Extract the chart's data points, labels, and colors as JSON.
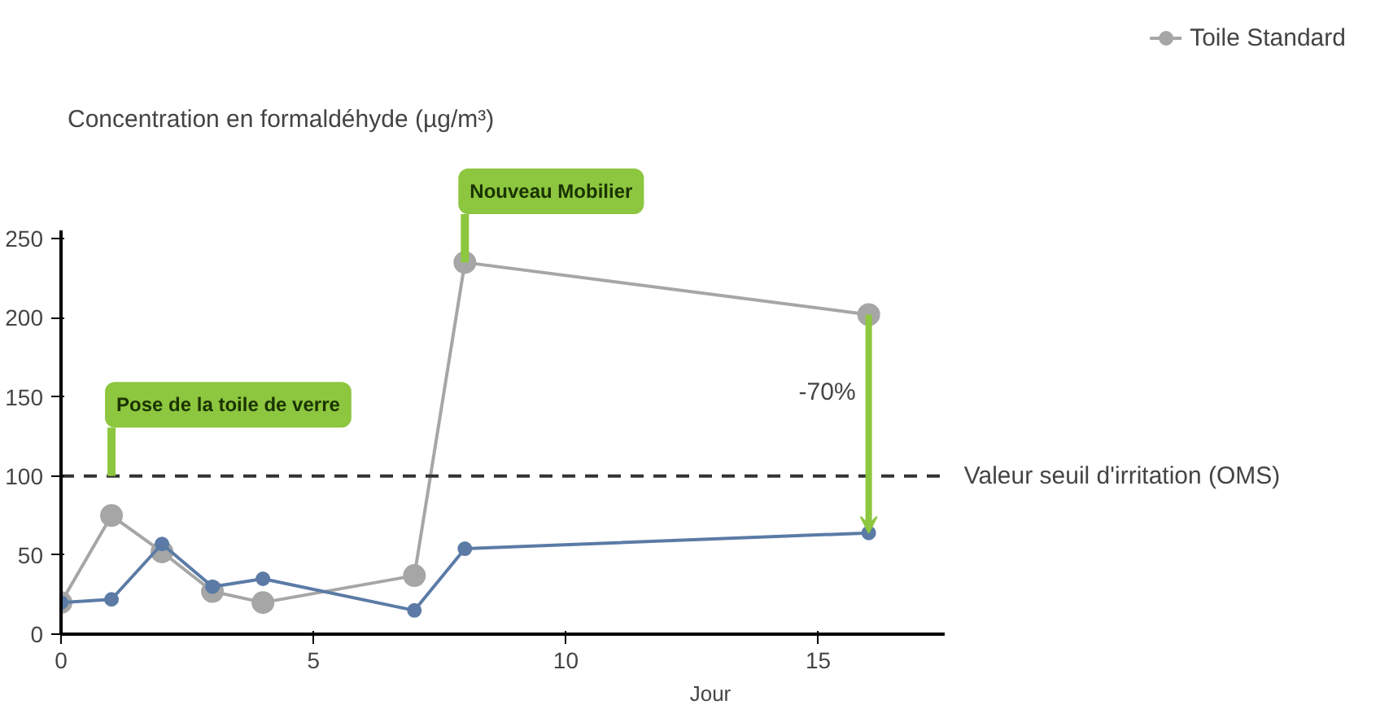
{
  "chart_data": {
    "type": "line",
    "ylabel": "Concentration en formaldéhyde (µg/m³)",
    "xlabel": "Jour",
    "x": [
      0,
      1,
      2,
      3,
      4,
      7,
      8,
      16
    ],
    "series": [
      {
        "name": "Toile Standard",
        "color": "#a6a6a6",
        "values": [
          20,
          75,
          52,
          27,
          20,
          37,
          235,
          202
        ]
      },
      {
        "color": "#5b7ba6",
        "values": [
          20,
          22,
          57,
          30,
          35,
          15,
          54,
          64
        ]
      }
    ],
    "xlim": [
      0,
      17.5
    ],
    "xticks": [
      0,
      5,
      10,
      15
    ],
    "ylim": [
      0,
      255
    ],
    "yticks": [
      0,
      50,
      100,
      150,
      200,
      250
    ],
    "ref_lines": [
      {
        "axis": "y",
        "value": 100,
        "label": "Valeur seuil d'irritation (OMS)",
        "color": "#333333",
        "line_style": "dashed"
      }
    ],
    "annotations": [
      {
        "text": "Pose de la toile de verre",
        "x": 1,
        "y": 100
      },
      {
        "text": "Nouveau Mobilier",
        "x": 8,
        "y": 235
      },
      "-70%"
    ],
    "grid": false,
    "legend": "top right",
    "marker": "circle",
    "line_style": "solid"
  }
}
